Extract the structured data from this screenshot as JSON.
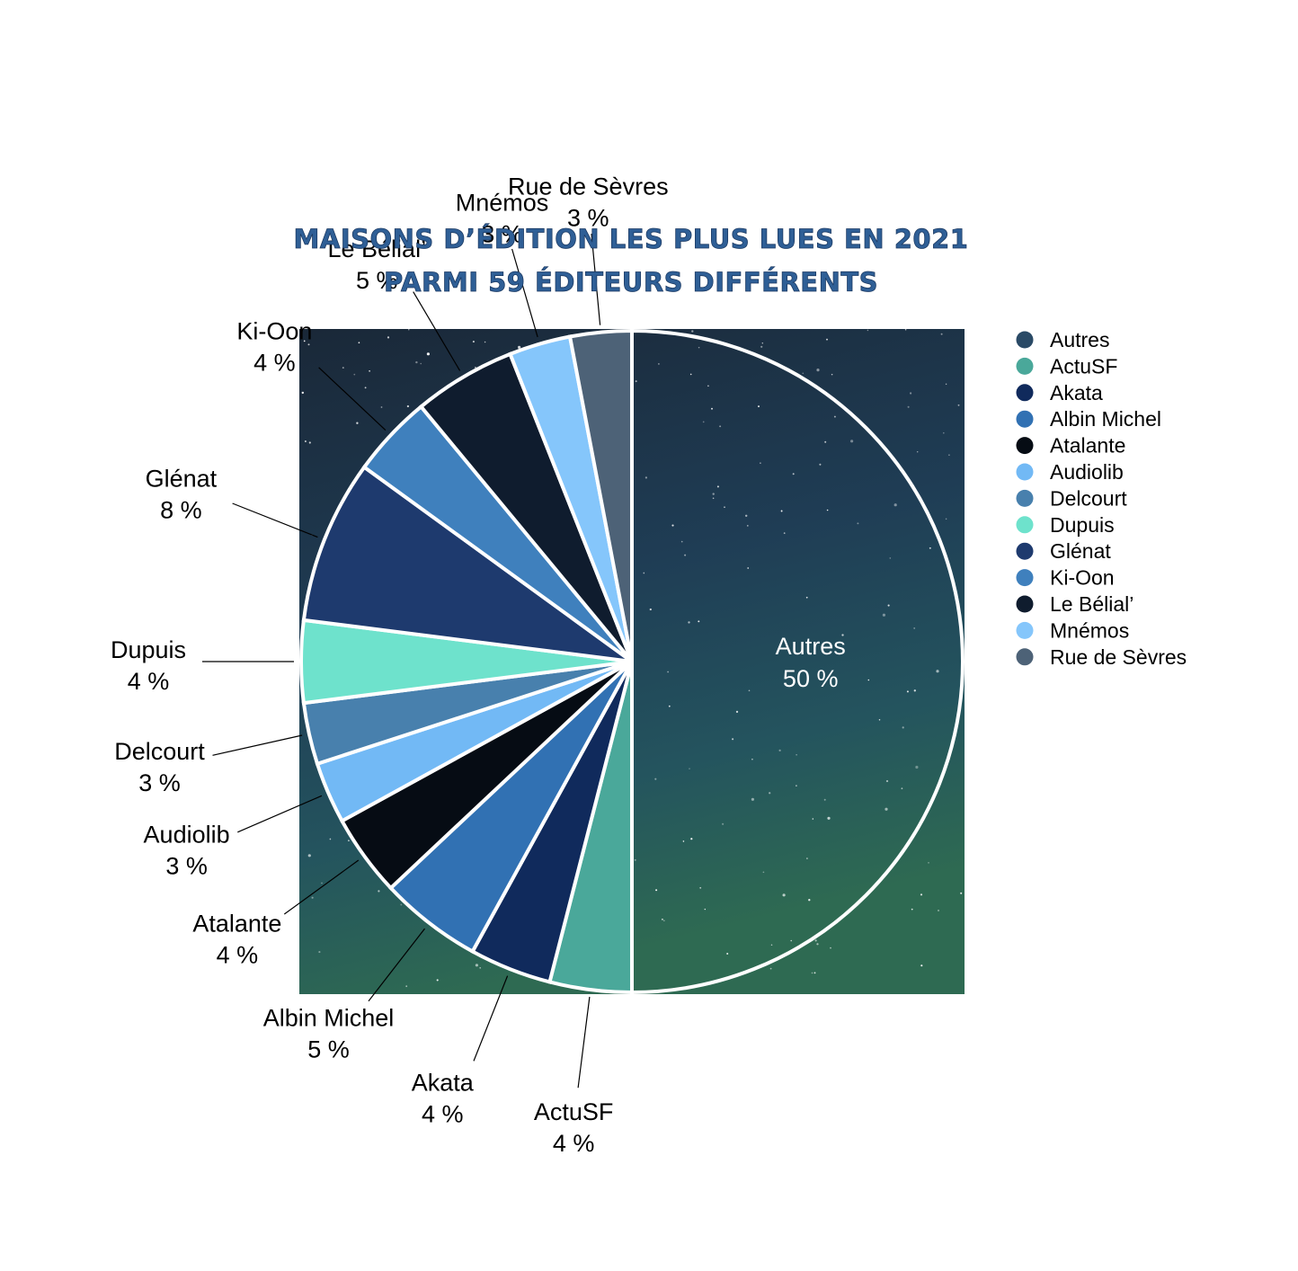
{
  "chart_data": {
    "type": "pie",
    "title": "Maisons d’édition les plus lues en 2021",
    "subtitle": "parmi 59 éditeurs différents",
    "legend_position": "right",
    "slices": [
      {
        "label": "Autres",
        "value": 50,
        "display": "50 %",
        "color": "#2a4a66"
      },
      {
        "label": "ActuSF",
        "value": 4,
        "display": "4 %",
        "color": "#4aa89a"
      },
      {
        "label": "Akata",
        "value": 4,
        "display": "4 %",
        "color": "#102a5c"
      },
      {
        "label": "Albin Michel",
        "value": 5,
        "display": "5 %",
        "color": "#3171b3"
      },
      {
        "label": "Atalante",
        "value": 4,
        "display": "4 %",
        "color": "#060c14"
      },
      {
        "label": "Audiolib",
        "value": 3,
        "display": "3 %",
        "color": "#72b9f5"
      },
      {
        "label": "Delcourt",
        "value": 3,
        "display": "3 %",
        "color": "#4880ad"
      },
      {
        "label": "Dupuis",
        "value": 4,
        "display": "4 %",
        "color": "#6ee2cc"
      },
      {
        "label": "Glénat",
        "value": 8,
        "display": "8 %",
        "color": "#1e3a6e"
      },
      {
        "label": "Ki-Oon",
        "value": 4,
        "display": "4 %",
        "color": "#3f80bd"
      },
      {
        "label": "Le Bélial’",
        "value": 5,
        "display": "5 %",
        "color": "#0f1c2e"
      },
      {
        "label": "Mnémos",
        "value": 3,
        "display": "3 %",
        "color": "#85c6fb"
      },
      {
        "label": "Rue de Sèvres",
        "value": 3,
        "display": "3 %",
        "color": "#4d6277"
      }
    ]
  }
}
